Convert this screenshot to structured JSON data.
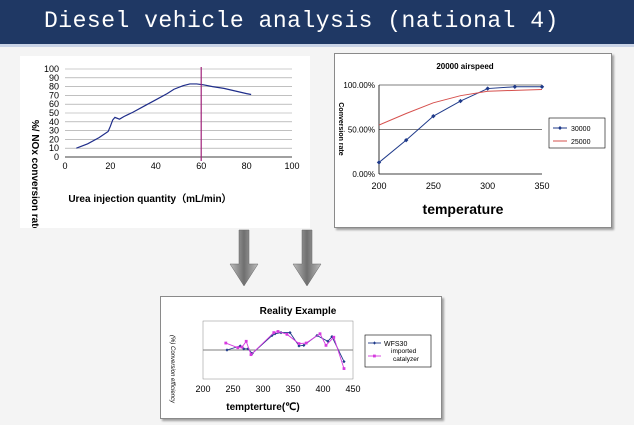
{
  "slide": {
    "title": "Diesel vehicle analysis  (national 4)"
  },
  "chart_data": [
    {
      "type": "line",
      "title": "",
      "xlabel": "Urea injection quantity（mL/min）",
      "ylabel": "%/ NOx conversion rate",
      "xlim": [
        0,
        100
      ],
      "ylim": [
        0,
        100
      ],
      "xticks": [
        0,
        20,
        40,
        60,
        80,
        100
      ],
      "yticks": [
        0,
        10,
        20,
        30,
        40,
        50,
        60,
        70,
        80,
        90,
        100
      ],
      "series": [
        {
          "color": "#1f2d8a",
          "x": [
            5,
            10,
            15,
            19,
            20,
            21,
            22,
            24,
            26,
            30,
            35,
            40,
            45,
            48,
            52,
            55,
            58,
            61,
            65,
            70,
            75,
            80,
            82
          ],
          "y": [
            10,
            15,
            22,
            29,
            35,
            42,
            45,
            43,
            46,
            51,
            58,
            65,
            72,
            77,
            81,
            83,
            83,
            82,
            80,
            78,
            75,
            72,
            71
          ]
        }
      ],
      "marker_line": {
        "x": 60,
        "color": "#a0227a"
      },
      "grid": "horizontal"
    },
    {
      "type": "line",
      "title": "20000 airspeed",
      "xlabel": "temperature",
      "ylabel": "Conversion rate",
      "xlim": [
        200,
        350
      ],
      "ylim": [
        0,
        100
      ],
      "xticks": [
        200,
        250,
        300,
        350
      ],
      "ytick_labels": [
        "0.00%",
        "50.00%",
        "100.00%"
      ],
      "ytick_values": [
        0,
        50,
        100
      ],
      "legend": "right",
      "series": [
        {
          "name": "30000",
          "color": "#1f3a8a",
          "marker": "diamond",
          "x": [
            200,
            225,
            250,
            275,
            300,
            325,
            350
          ],
          "y": [
            13,
            38,
            65,
            82,
            96,
            98,
            98
          ]
        },
        {
          "name": "25000",
          "color": "#d6504d",
          "marker": "none",
          "x": [
            200,
            225,
            250,
            275,
            300,
            325,
            350
          ],
          "y": [
            55,
            68,
            80,
            88,
            93,
            94,
            95
          ]
        }
      ]
    },
    {
      "type": "line",
      "title": "Reality Example",
      "xlabel": "tempterture(℃)",
      "ylabel": "(%) Conversion efficiency",
      "xlim": [
        200,
        450
      ],
      "xticks": [
        200,
        250,
        300,
        350,
        400,
        450
      ],
      "ylim": [
        0,
        100
      ],
      "legend": "right",
      "series": [
        {
          "name": "WFS30",
          "color": "#1f3a8a",
          "marker": "diamond",
          "x": [
            240,
            262,
            268,
            275,
            282,
            315,
            320,
            330,
            345,
            360,
            368,
            390,
            408,
            415,
            435
          ],
          "y": [
            50,
            57,
            52,
            52,
            44,
            75,
            78,
            80,
            80,
            57,
            58,
            75,
            65,
            73,
            30
          ]
        },
        {
          "name": "imported catalyzer",
          "color": "#d63adf",
          "marker": "square",
          "x": [
            238,
            258,
            265,
            272,
            280,
            318,
            325,
            340,
            360,
            372,
            395,
            405,
            418,
            435
          ],
          "y": [
            62,
            54,
            55,
            65,
            42,
            80,
            82,
            77,
            61,
            62,
            78,
            58,
            72,
            18
          ]
        }
      ]
    }
  ],
  "arrows": {
    "color": "#7f7f7f"
  }
}
